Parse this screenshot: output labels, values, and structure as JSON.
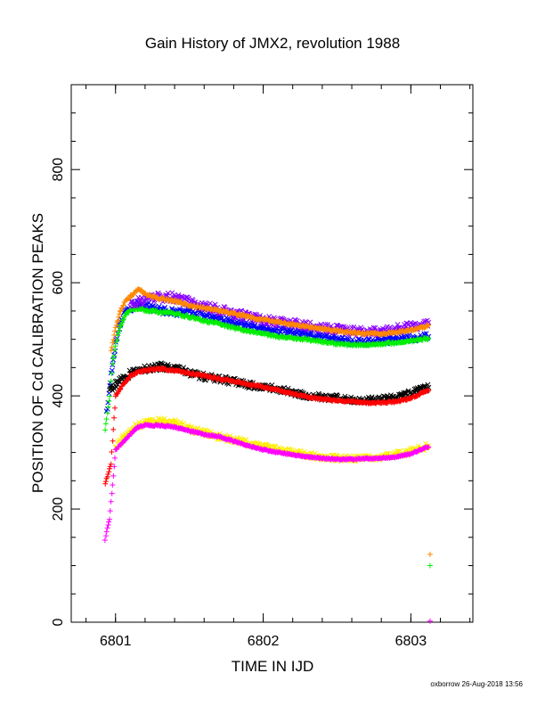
{
  "chart_data": {
    "type": "scatter",
    "title": "Gain History of JMX2, revolution 1988",
    "xlabel": "TIME IN IJD",
    "ylabel": "POSITION OF Cd CALIBRATION PEAKS",
    "xlim": [
      6800.7,
      6803.42
    ],
    "ylim": [
      0,
      950
    ],
    "xticks": [
      6801,
      6802,
      6803
    ],
    "yticks": [
      0,
      200,
      400,
      600,
      800
    ],
    "grid": false,
    "footer": "oxborrow 26-Aug-2018 13:56",
    "series": [
      {
        "color": "#0000ff",
        "marker": "x",
        "scatter": 0.012,
        "x": [
          6800.94,
          6800.98,
          6801.02,
          6801.06,
          6801.1,
          6801.15,
          6801.2,
          6801.3,
          6801.4,
          6801.5,
          6801.6,
          6801.7,
          6801.8,
          6801.9,
          6802.0,
          6802.1,
          6802.2,
          6802.3,
          6802.4,
          6802.5,
          6802.6,
          6802.7,
          6802.8,
          6802.9,
          6803.0,
          6803.12
        ],
        "y": [
          370,
          460,
          520,
          548,
          555,
          562,
          560,
          552,
          548,
          548,
          545,
          535,
          530,
          525,
          520,
          515,
          512,
          508,
          503,
          500,
          496,
          496,
          498,
          500,
          502,
          505
        ]
      },
      {
        "color": "#00ee00",
        "marker": "+",
        "scatter": 0.004,
        "x": [
          6800.93,
          6800.96,
          6800.98,
          6801.0,
          6801.03,
          6801.06,
          6801.1,
          6801.15,
          6801.2,
          6801.3,
          6801.4,
          6801.5,
          6801.6,
          6801.7,
          6801.8,
          6801.9,
          6802.0,
          6802.1,
          6802.2,
          6802.3,
          6802.4,
          6802.5,
          6802.6,
          6802.7,
          6802.8,
          6802.9,
          6803.0,
          6803.12
        ],
        "y": [
          340,
          400,
          455,
          490,
          520,
          540,
          552,
          555,
          552,
          548,
          545,
          540,
          532,
          528,
          520,
          515,
          510,
          505,
          502,
          500,
          496,
          492,
          490,
          490,
          492,
          494,
          497,
          502
        ]
      },
      {
        "color": "#8800ff",
        "marker": "x",
        "scatter": 0.015,
        "x": [
          6801.1,
          6801.2,
          6801.3,
          6801.4,
          6801.5,
          6801.6,
          6801.7,
          6801.8,
          6801.9,
          6802.0,
          6802.1,
          6802.2,
          6802.3,
          6802.4,
          6802.5,
          6802.6,
          6802.7,
          6802.8,
          6802.9,
          6803.0,
          6803.12
        ],
        "y": [
          562,
          568,
          575,
          574,
          565,
          558,
          552,
          545,
          540,
          535,
          530,
          528,
          524,
          520,
          518,
          515,
          512,
          514,
          518,
          522,
          530
        ]
      },
      {
        "color": "#ff8800",
        "marker": "+",
        "scatter": 0.004,
        "x": [
          6800.97,
          6801.0,
          6801.03,
          6801.06,
          6801.1,
          6801.13,
          6801.16,
          6801.2,
          6801.3,
          6801.4,
          6801.5,
          6801.6,
          6801.7,
          6801.8,
          6801.9,
          6802.0,
          6802.1,
          6802.2,
          6802.3,
          6802.4,
          6802.5,
          6802.6,
          6802.7,
          6802.8,
          6802.9,
          6803.0,
          6803.12
        ],
        "y": [
          480,
          520,
          548,
          565,
          575,
          584,
          588,
          580,
          572,
          568,
          560,
          555,
          550,
          546,
          540,
          535,
          530,
          526,
          522,
          518,
          515,
          512,
          510,
          510,
          512,
          516,
          525
        ]
      },
      {
        "color": "#000000",
        "marker": "x",
        "scatter": 0.014,
        "x": [
          6800.96,
          6801.0,
          6801.05,
          6801.1,
          6801.2,
          6801.3,
          6801.4,
          6801.5,
          6801.6,
          6801.7,
          6801.8,
          6801.9,
          6802.0,
          6802.1,
          6802.2,
          6802.3,
          6802.4,
          6802.5,
          6802.6,
          6802.7,
          6802.8,
          6802.9,
          6803.0,
          6803.12
        ],
        "y": [
          410,
          420,
          430,
          440,
          448,
          452,
          450,
          440,
          434,
          430,
          425,
          420,
          416,
          412,
          406,
          400,
          398,
          396,
          393,
          392,
          394,
          398,
          405,
          415
        ]
      },
      {
        "color": "#ff0000",
        "marker": "+",
        "scatter": 0.004,
        "x": [
          6800.93,
          6800.95,
          6800.97,
          6801.0,
          6801.05,
          6801.1,
          6801.15,
          6801.2,
          6801.3,
          6801.4,
          6801.5,
          6801.6,
          6801.7,
          6801.8,
          6801.9,
          6802.0,
          6802.1,
          6802.2,
          6802.3,
          6802.4,
          6802.5,
          6802.6,
          6802.7,
          6802.8,
          6802.9,
          6803.0,
          6803.12
        ],
        "y": [
          245,
          262,
          280,
          400,
          420,
          435,
          442,
          445,
          448,
          445,
          440,
          436,
          430,
          426,
          420,
          416,
          410,
          404,
          398,
          394,
          392,
          390,
          388,
          388,
          390,
          396,
          410
        ]
      },
      {
        "color": "#ffee00",
        "marker": "x",
        "scatter": 0.018,
        "x": [
          6801.0,
          6801.05,
          6801.1,
          6801.15,
          6801.2,
          6801.3,
          6801.4,
          6801.5,
          6801.6,
          6801.7,
          6801.8,
          6801.9,
          6802.0,
          6802.1,
          6802.2,
          6802.3,
          6802.4,
          6802.5,
          6802.6,
          6802.7,
          6802.8,
          6802.9,
          6803.0,
          6803.12
        ],
        "y": [
          310,
          325,
          338,
          348,
          352,
          355,
          352,
          342,
          334,
          328,
          322,
          316,
          310,
          305,
          300,
          296,
          292,
          290,
          289,
          290,
          292,
          296,
          302,
          312
        ]
      },
      {
        "color": "#ff00ff",
        "marker": "+",
        "scatter": 0.004,
        "x": [
          6800.93,
          6800.94,
          6800.95,
          6800.96,
          6801.0,
          6801.05,
          6801.1,
          6801.15,
          6801.2,
          6801.3,
          6801.4,
          6801.5,
          6801.6,
          6801.7,
          6801.8,
          6801.9,
          6802.0,
          6802.1,
          6802.2,
          6802.3,
          6802.4,
          6802.5,
          6802.6,
          6802.7,
          6802.8,
          6802.9,
          6803.0,
          6803.12
        ],
        "y": [
          145,
          160,
          172,
          182,
          305,
          318,
          332,
          345,
          348,
          348,
          345,
          338,
          332,
          328,
          320,
          312,
          305,
          300,
          296,
          292,
          290,
          288,
          288,
          289,
          290,
          292,
          298,
          310
        ]
      }
    ],
    "outliers": [
      {
        "x": 6803.13,
        "y": 120,
        "color": "#ff8800",
        "marker": "+"
      },
      {
        "x": 6803.13,
        "y": 100,
        "color": "#00ee00",
        "marker": "+"
      },
      {
        "x": 6803.13,
        "y": 2,
        "color": "#ff00ff",
        "marker": "+"
      }
    ]
  }
}
